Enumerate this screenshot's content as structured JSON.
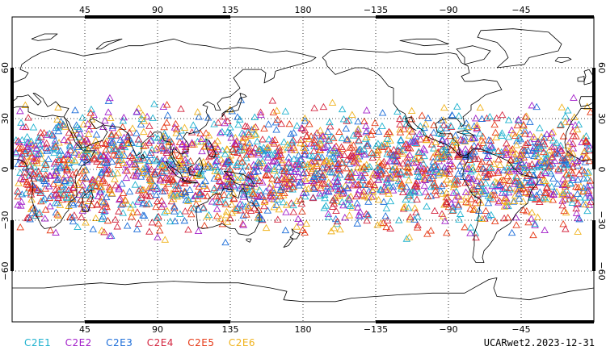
{
  "map": {
    "projection": "cylindrical equidistant",
    "lon_range": [
      0,
      360
    ],
    "lat_range": [
      -90,
      90
    ],
    "x_ticks": [
      {
        "lon": 45,
        "label": "45"
      },
      {
        "lon": 90,
        "label": "90"
      },
      {
        "lon": 135,
        "label": "135"
      },
      {
        "lon": 180,
        "label": "180"
      },
      {
        "lon": 225,
        "label": "−135"
      },
      {
        "lon": 270,
        "label": "−90"
      },
      {
        "lon": 315,
        "label": "−45"
      }
    ],
    "y_ticks": [
      {
        "lat": 60,
        "label": "60"
      },
      {
        "lat": 30,
        "label": "30"
      },
      {
        "lat": 0,
        "label": "0"
      },
      {
        "lat": -30,
        "label": "−30"
      },
      {
        "lat": -60,
        "label": "−60"
      }
    ],
    "grid": true,
    "coastline_color": "#000000",
    "marker_shape": "open triangle",
    "observation_lat_band": [
      -48,
      48
    ]
  },
  "legend": [
    {
      "label": "C2E1",
      "color": "#1fb2cf"
    },
    {
      "label": "C2E2",
      "color": "#a21fc9"
    },
    {
      "label": "C2E3",
      "color": "#1f6fd9"
    },
    {
      "label": "C2E4",
      "color": "#d4253f"
    },
    {
      "label": "C2E5",
      "color": "#e63a17"
    },
    {
      "label": "C2E6",
      "color": "#f0b21c"
    }
  ],
  "footer_label": "UCARwet2.2023-12-31"
}
